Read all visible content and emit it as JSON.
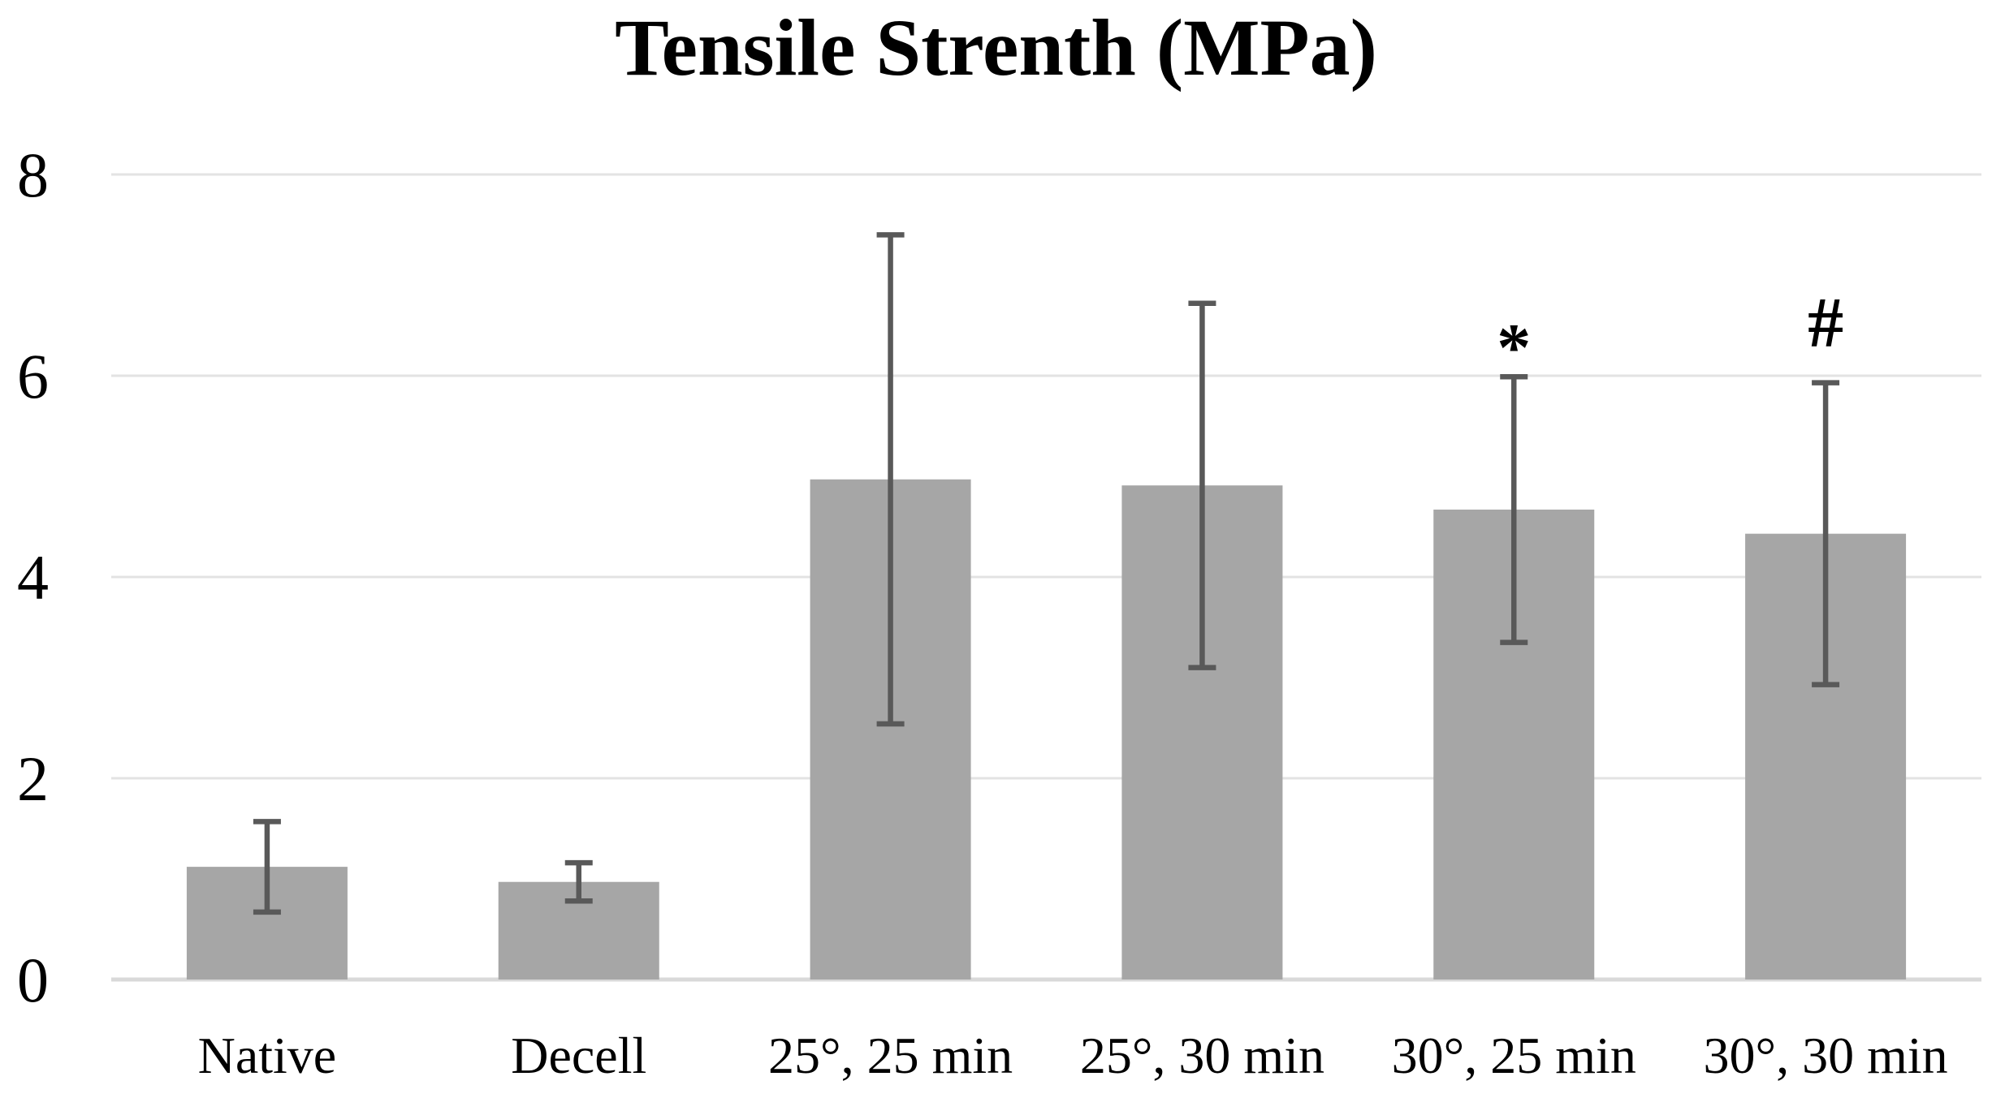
{
  "chart_data": {
    "type": "bar",
    "title": "Tensile Strenth (MPa)",
    "categories": [
      "Native",
      "Decell",
      "25°, 25 min",
      "25°, 30 min",
      "30°, 25 min",
      "30°, 30 min"
    ],
    "values": [
      1.12,
      0.97,
      4.97,
      4.91,
      4.67,
      4.43
    ],
    "error_bars": [
      0.45,
      0.19,
      2.43,
      1.81,
      1.32,
      1.5
    ],
    "annotations": [
      "",
      "",
      "",
      "",
      "*",
      "#"
    ],
    "xlabel": "",
    "ylabel": "",
    "ylim": [
      0,
      8
    ],
    "yticks": [
      0,
      2,
      4,
      6,
      8
    ],
    "grid": true,
    "legend": false,
    "colors": {
      "bar": "#a6a6a6",
      "error_bar": "#595959",
      "gridline": "#e3e3e3",
      "axis_line": "#d9d9d9",
      "text": "#000000",
      "background": "#ffffff"
    }
  }
}
